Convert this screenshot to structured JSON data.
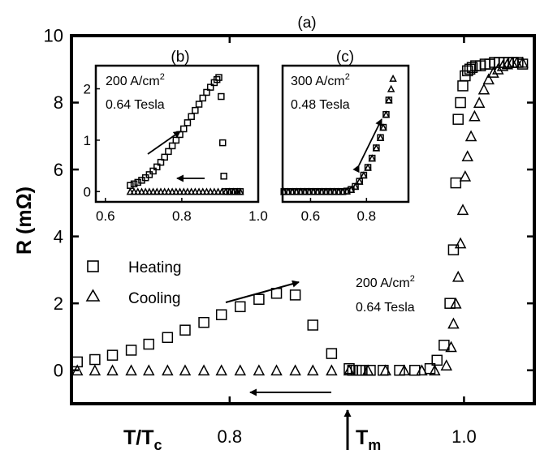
{
  "chart_data": [
    {
      "panel": "(a)",
      "type": "scatter",
      "title": "(a)",
      "xlabel": "T/T",
      "xlabel_sub": "c",
      "ylabel": "R (mΩ)",
      "xlim": [
        0.665,
        1.06
      ],
      "ylim": [
        -1,
        10
      ],
      "xticks": [
        0.8,
        1.0
      ],
      "xtick_labels": [
        "0.8",
        "1.0"
      ],
      "yticks": [
        0,
        2,
        4,
        6,
        8,
        10
      ],
      "ytick_labels": [
        "0",
        "2",
        "4",
        "6",
        "8",
        "10"
      ],
      "legend": {
        "placement": "center-left",
        "entries": [
          {
            "marker": "square",
            "label": "Heating"
          },
          {
            "marker": "triangle",
            "label": "Cooling"
          }
        ]
      },
      "annotation": {
        "line1": "200 A/cm",
        "sup": "2",
        "line2": "0.64 Tesla"
      },
      "marker_label": {
        "text": "T",
        "sub": "m",
        "x": 0.905
      },
      "series": [
        {
          "name": "Heating",
          "marker": "square",
          "x": [
            0.67,
            0.685,
            0.7,
            0.716,
            0.731,
            0.747,
            0.762,
            0.778,
            0.793,
            0.809,
            0.825,
            0.84,
            0.856,
            0.871,
            0.887,
            0.902,
            0.905,
            0.908,
            0.911,
            0.913,
            0.92,
            0.931,
            0.945,
            0.958,
            0.971,
            0.977,
            0.983,
            0.988,
            0.991,
            0.993,
            0.995,
            0.997,
            0.999,
            1.001,
            1.003,
            1.005,
            1.007,
            1.01,
            1.014,
            1.018,
            1.022,
            1.026,
            1.03,
            1.034,
            1.038,
            1.042,
            1.046,
            1.05
          ],
          "y": [
            0.25,
            0.32,
            0.45,
            0.6,
            0.78,
            0.98,
            1.2,
            1.43,
            1.66,
            1.9,
            2.12,
            2.3,
            2.25,
            1.35,
            0.5,
            0.05,
            0.0,
            0.0,
            0.0,
            0.0,
            0.0,
            0.0,
            0.0,
            0.0,
            0.05,
            0.3,
            0.75,
            2.0,
            3.6,
            5.6,
            7.5,
            8.0,
            8.5,
            8.8,
            8.95,
            9.0,
            9.05,
            9.1,
            9.1,
            9.15,
            9.15,
            9.2,
            9.2,
            9.2,
            9.2,
            9.2,
            9.2,
            9.15
          ]
        },
        {
          "name": "Cooling",
          "marker": "triangle",
          "x": [
            0.67,
            0.685,
            0.7,
            0.716,
            0.731,
            0.747,
            0.762,
            0.778,
            0.793,
            0.809,
            0.825,
            0.84,
            0.856,
            0.871,
            0.887,
            0.902,
            0.918,
            0.933,
            0.949,
            0.964,
            0.975,
            0.985,
            0.989,
            0.991,
            0.993,
            0.995,
            0.997,
            0.999,
            1.001,
            1.003,
            1.006,
            1.009,
            1.013,
            1.017,
            1.021,
            1.025,
            1.029,
            1.033,
            1.037,
            1.041,
            1.045,
            1.05
          ],
          "y": [
            0,
            0,
            0,
            0,
            0,
            0,
            0,
            0,
            0,
            0,
            0,
            0,
            0,
            0,
            0,
            0,
            0,
            0,
            0,
            0,
            0,
            0.15,
            0.7,
            1.4,
            2.0,
            2.8,
            3.8,
            4.8,
            5.8,
            6.4,
            7.0,
            7.6,
            8.0,
            8.4,
            8.7,
            8.9,
            9.0,
            9.1,
            9.15,
            9.2,
            9.2,
            9.2
          ]
        }
      ]
    },
    {
      "panel": "(b)",
      "type": "scatter",
      "title": "(b)",
      "xlim": [
        0.575,
        1.0
      ],
      "ylim": [
        -0.2,
        2.45
      ],
      "xticks": [
        0.6,
        0.8,
        1.0
      ],
      "xtick_labels": [
        "0.6",
        "0.8",
        "1.0"
      ],
      "yticks": [
        0,
        1,
        2
      ],
      "ytick_labels": [
        "0",
        "1",
        "2"
      ],
      "annotation": {
        "line1": "200 A/cm",
        "sup": "2",
        "line2": "0.64 Tesla"
      },
      "series": [
        {
          "name": "Heating",
          "marker": "square",
          "x": [
            0.665,
            0.675,
            0.685,
            0.695,
            0.705,
            0.715,
            0.725,
            0.735,
            0.745,
            0.755,
            0.765,
            0.775,
            0.785,
            0.795,
            0.805,
            0.815,
            0.825,
            0.835,
            0.845,
            0.855,
            0.865,
            0.875,
            0.885,
            0.892,
            0.897,
            0.903,
            0.907,
            0.91,
            0.915,
            0.925,
            0.935,
            0.945,
            0.953
          ],
          "y": [
            0.12,
            0.15,
            0.18,
            0.22,
            0.27,
            0.33,
            0.4,
            0.48,
            0.57,
            0.67,
            0.78,
            0.89,
            1.0,
            1.11,
            1.22,
            1.34,
            1.46,
            1.58,
            1.7,
            1.82,
            1.93,
            2.03,
            2.12,
            2.18,
            2.22,
            1.85,
            0.95,
            0.3,
            0.0,
            0.0,
            0.0,
            0.0,
            0.0
          ]
        },
        {
          "name": "Cooling",
          "marker": "triangle",
          "x": [
            0.665,
            0.675,
            0.685,
            0.695,
            0.705,
            0.715,
            0.725,
            0.735,
            0.745,
            0.755,
            0.765,
            0.775,
            0.785,
            0.795,
            0.805,
            0.815,
            0.825,
            0.835,
            0.845,
            0.855,
            0.865,
            0.875,
            0.885,
            0.895,
            0.905,
            0.915,
            0.925,
            0.935,
            0.945,
            0.953
          ],
          "y": [
            0,
            0,
            0,
            0,
            0,
            0,
            0,
            0,
            0,
            0,
            0,
            0,
            0,
            0,
            0,
            0,
            0,
            0,
            0,
            0,
            0,
            0,
            0,
            0,
            0,
            0,
            0,
            0,
            0,
            0
          ]
        }
      ]
    },
    {
      "panel": "(c)",
      "type": "scatter",
      "title": "(c)",
      "xlim": [
        0.5,
        0.95
      ],
      "ylim": [
        -0.2,
        2.45
      ],
      "xticks": [
        0.6,
        0.8
      ],
      "xtick_labels": [
        "0.6",
        "0.8"
      ],
      "annotation": {
        "line1": "300 A/cm",
        "sup": "2",
        "line2": "0.48 Tesla"
      },
      "series": [
        {
          "name": "Heating",
          "marker": "square",
          "x": [
            0.505,
            0.52,
            0.535,
            0.55,
            0.565,
            0.58,
            0.595,
            0.61,
            0.625,
            0.64,
            0.655,
            0.67,
            0.685,
            0.7,
            0.715,
            0.73,
            0.745,
            0.76,
            0.775,
            0.79,
            0.805,
            0.82,
            0.835,
            0.85,
            0.86,
            0.87,
            0.88
          ],
          "y": [
            0,
            0,
            0,
            0,
            0,
            0,
            0,
            0,
            0,
            0,
            0,
            0,
            0,
            0,
            0,
            0.01,
            0.04,
            0.1,
            0.2,
            0.32,
            0.47,
            0.65,
            0.85,
            1.05,
            1.25,
            1.5,
            1.78
          ]
        },
        {
          "name": "Cooling",
          "marker": "triangle",
          "x": [
            0.505,
            0.52,
            0.535,
            0.55,
            0.565,
            0.58,
            0.595,
            0.61,
            0.625,
            0.64,
            0.655,
            0.67,
            0.685,
            0.7,
            0.715,
            0.73,
            0.745,
            0.76,
            0.775,
            0.79,
            0.805,
            0.82,
            0.835,
            0.85,
            0.86,
            0.87,
            0.88,
            0.888,
            0.895
          ],
          "y": [
            0,
            0,
            0,
            0,
            0,
            0,
            0,
            0,
            0,
            0,
            0,
            0,
            0,
            0,
            0,
            0.01,
            0.04,
            0.1,
            0.2,
            0.32,
            0.47,
            0.65,
            0.85,
            1.05,
            1.25,
            1.5,
            1.78,
            2.0,
            2.2
          ]
        }
      ]
    }
  ]
}
